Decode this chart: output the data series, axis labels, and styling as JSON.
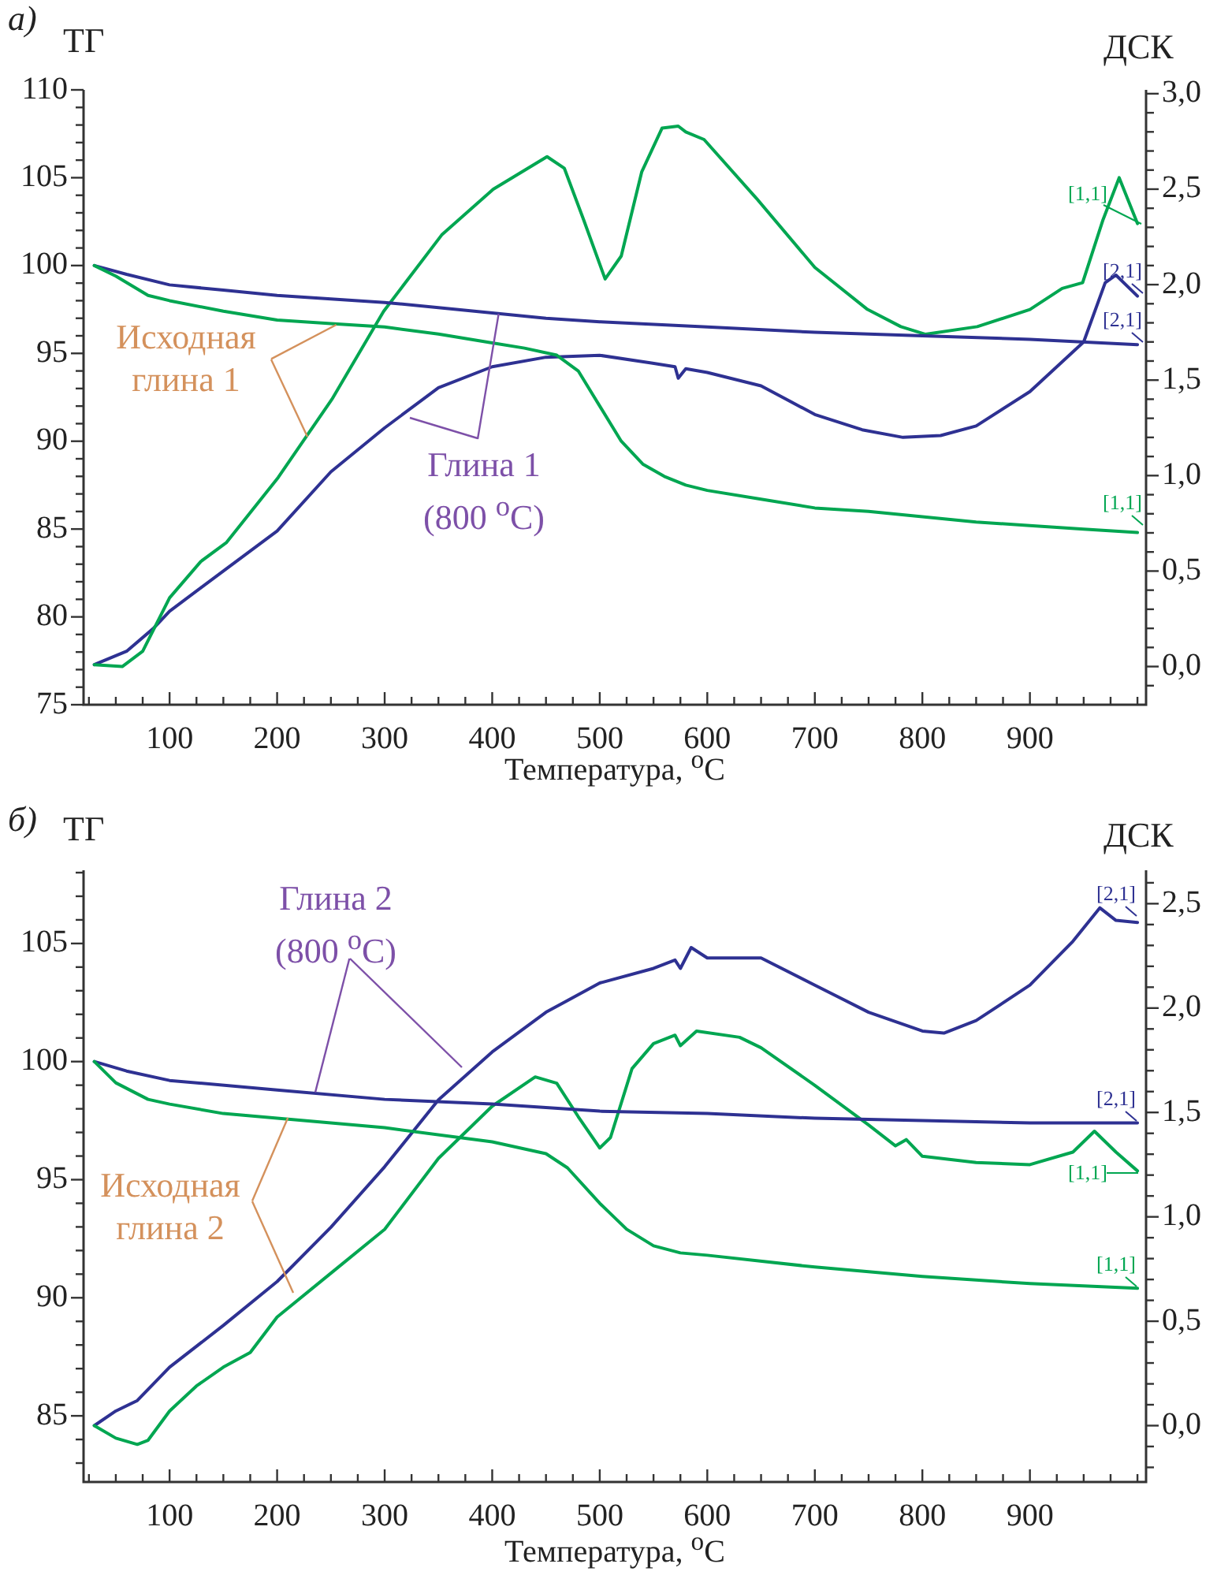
{
  "chart_data": [
    {
      "type": "line",
      "title": "а)",
      "xlabel": "Температура, $^{o}$C",
      "ylabel": "ТГ",
      "y2label": "ДСК",
      "xlim": [
        20,
        1008
      ],
      "ylim": [
        75,
        110
      ],
      "y2lim": [
        -0.2,
        3.02
      ],
      "xticks": [
        {
          "value": 25,
          "label": null
        },
        {
          "value": 50,
          "label": null
        },
        {
          "value": 75,
          "label": null
        },
        100,
        {
          "value": 125,
          "label": null
        },
        {
          "value": 150,
          "label": null
        },
        {
          "value": 175,
          "label": null
        },
        200,
        {
          "value": 225,
          "label": null
        },
        {
          "value": 250,
          "label": null
        },
        {
          "value": 275,
          "label": null
        },
        300,
        {
          "value": 325,
          "label": null
        },
        {
          "value": 350,
          "label": null
        },
        {
          "value": 375,
          "label": null
        },
        400,
        {
          "value": 425,
          "label": null
        },
        {
          "value": 450,
          "label": null
        },
        {
          "value": 475,
          "label": null
        },
        500,
        {
          "value": 525,
          "label": null
        },
        {
          "value": 550,
          "label": null
        },
        {
          "value": 575,
          "label": null
        },
        600,
        {
          "value": 625,
          "label": null
        },
        {
          "value": 650,
          "label": null
        },
        {
          "value": 675,
          "label": null
        },
        700,
        {
          "value": 725,
          "label": null
        },
        {
          "value": 750,
          "label": null
        },
        {
          "value": 775,
          "label": null
        },
        800,
        {
          "value": 825,
          "label": null
        },
        {
          "value": 850,
          "label": null
        },
        {
          "value": 875,
          "label": null
        },
        900,
        {
          "value": 925,
          "label": null
        },
        {
          "value": 950,
          "label": null
        },
        {
          "value": 975,
          "label": null
        },
        {
          "value": 1000,
          "label": null
        }
      ],
      "yticks": [
        75,
        {
          "value": 76,
          "label": null
        },
        {
          "value": 77,
          "label": null
        },
        {
          "value": 78,
          "label": null
        },
        {
          "value": 79,
          "label": null
        },
        80,
        {
          "value": 81,
          "label": null
        },
        {
          "value": 82,
          "label": null
        },
        {
          "value": 83,
          "label": null
        },
        {
          "value": 84,
          "label": null
        },
        85,
        {
          "value": 86,
          "label": null
        },
        {
          "value": 87,
          "label": null
        },
        {
          "value": 88,
          "label": null
        },
        {
          "value": 89,
          "label": null
        },
        90,
        {
          "value": 91,
          "label": null
        },
        {
          "value": 92,
          "label": null
        },
        {
          "value": 93,
          "label": null
        },
        {
          "value": 94,
          "label": null
        },
        95,
        {
          "value": 96,
          "label": null
        },
        {
          "value": 97,
          "label": null
        },
        {
          "value": 98,
          "label": null
        },
        {
          "value": 99,
          "label": null
        },
        100,
        {
          "value": 101,
          "label": null
        },
        {
          "value": 102,
          "label": null
        },
        {
          "value": 103,
          "label": null
        },
        {
          "value": 104,
          "label": null
        },
        105,
        {
          "value": 106,
          "label": null
        },
        {
          "value": 107,
          "label": null
        },
        {
          "value": 108,
          "label": null
        },
        {
          "value": 109,
          "label": null
        },
        110
      ],
      "y2ticks": [
        {
          "value": -0.1,
          "label": null
        },
        {
          "value": 0,
          "label": "0,0"
        },
        {
          "value": 0.1,
          "label": null
        },
        {
          "value": 0.2,
          "label": null
        },
        {
          "value": 0.3,
          "label": null
        },
        {
          "value": 0.4,
          "label": null
        },
        {
          "value": 0.5,
          "label": "0,5"
        },
        {
          "value": 0.6,
          "label": null
        },
        {
          "value": 0.7,
          "label": null
        },
        {
          "value": 0.8,
          "label": null
        },
        {
          "value": 0.9,
          "label": null
        },
        {
          "value": 1,
          "label": "1,0"
        },
        {
          "value": 1.1,
          "label": null
        },
        {
          "value": 1.2,
          "label": null
        },
        {
          "value": 1.3,
          "label": null
        },
        {
          "value": 1.4,
          "label": null
        },
        {
          "value": 1.5,
          "label": "1,5"
        },
        {
          "value": 1.6,
          "label": null
        },
        {
          "value": 1.7,
          "label": null
        },
        {
          "value": 1.8,
          "label": null
        },
        {
          "value": 1.9,
          "label": null
        },
        {
          "value": 2,
          "label": "2,0"
        },
        {
          "value": 2.1,
          "label": null
        },
        {
          "value": 2.2,
          "label": null
        },
        {
          "value": 2.3,
          "label": null
        },
        {
          "value": 2.4,
          "label": null
        },
        {
          "value": 2.5,
          "label": "2,5"
        },
        {
          "value": 2.6,
          "label": null
        },
        {
          "value": 2.7,
          "label": null
        },
        {
          "value": 2.8,
          "label": null
        },
        {
          "value": 2.9,
          "label": null
        },
        {
          "value": 3,
          "label": "3,0"
        }
      ],
      "series": [
        {
          "color": "#00a651",
          "x": [
            30,
            50,
            80,
            100,
            150,
            200,
            250,
            300,
            350,
            400,
            430,
            460,
            480,
            500,
            520,
            540,
            560,
            580,
            600,
            650,
            700,
            750,
            800,
            850,
            900,
            950,
            1000
          ],
          "values": [
            100,
            99.4,
            98.3,
            98.0,
            97.4,
            96.9,
            96.7,
            96.5,
            96.1,
            95.6,
            95.3,
            94.9,
            94.0,
            92.0,
            90.0,
            88.7,
            88.0,
            87.5,
            87.2,
            86.7,
            86.2,
            86.0,
            85.7,
            85.4,
            85.2,
            85.0,
            84.8
          ]
        },
        {
          "color": "#2e3192",
          "x": [
            30,
            60,
            100,
            150,
            200,
            250,
            300,
            350,
            400,
            450,
            500,
            600,
            700,
            800,
            900,
            1000
          ],
          "values": [
            100,
            99.5,
            98.9,
            98.6,
            98.3,
            98.1,
            97.9,
            97.6,
            97.3,
            97.0,
            96.8,
            96.5,
            96.2,
            96.0,
            95.8,
            95.5
          ]
        },
        {
          "color": "#00a651",
          "axis": "y2",
          "x": [
            30,
            56,
            75,
            100,
            129,
            153,
            201,
            251,
            299,
            353,
            401,
            451,
            467,
            485,
            505,
            520,
            539,
            558,
            573,
            580,
            597,
            646,
            700,
            749,
            780,
            803,
            851,
            900,
            930,
            949,
            968,
            983,
            1000
          ],
          "values": [
            0.01,
            0.0,
            0.08,
            0.36,
            0.55,
            0.65,
            0.99,
            1.4,
            1.86,
            2.26,
            2.5,
            2.67,
            2.61,
            2.34,
            2.03,
            2.15,
            2.59,
            2.82,
            2.83,
            2.8,
            2.76,
            2.45,
            2.09,
            1.87,
            1.78,
            1.74,
            1.78,
            1.87,
            1.98,
            2.01,
            2.34,
            2.56,
            2.32
          ]
        },
        {
          "color": "#2e3192",
          "axis": "y2",
          "x": [
            30,
            60,
            85,
            100,
            150,
            200,
            250,
            300,
            350,
            400,
            450,
            500,
            548,
            570,
            573,
            580,
            600,
            650,
            700,
            744,
            782,
            817,
            850,
            900,
            950,
            970,
            980,
            1000
          ],
          "values": [
            0.01,
            0.08,
            0.2,
            0.29,
            0.5,
            0.71,
            1.02,
            1.25,
            1.46,
            1.57,
            1.62,
            1.63,
            1.59,
            1.57,
            1.51,
            1.56,
            1.54,
            1.47,
            1.32,
            1.24,
            1.2,
            1.21,
            1.26,
            1.44,
            1.7,
            2.01,
            2.05,
            1.94
          ]
        }
      ],
      "annotations": [
        {
          "text": "Исходная глина 1",
          "x": 255,
          "y": 96.6
        },
        {
          "text": "Глина 1 (800 $^{o}$C)",
          "x": 406,
          "y": 97.3
        },
        "[1,1]",
        "[2,1]",
        "[2,1]",
        "[1,1]"
      ]
    },
    {
      "type": "line",
      "title": "б)",
      "xlabel": "Температура, $^{o}$C",
      "ylabel": "ТГ",
      "y2label": "ДСК",
      "xlim": [
        20,
        1008
      ],
      "ylim": [
        82.2,
        108.1
      ],
      "y2lim": [
        -0.27,
        2.66
      ],
      "xticks": [
        {
          "value": 25,
          "label": null
        },
        {
          "value": 50,
          "label": null
        },
        {
          "value": 75,
          "label": null
        },
        100,
        {
          "value": 125,
          "label": null
        },
        {
          "value": 150,
          "label": null
        },
        {
          "value": 175,
          "label": null
        },
        200,
        {
          "value": 225,
          "label": null
        },
        {
          "value": 250,
          "label": null
        },
        {
          "value": 275,
          "label": null
        },
        300,
        {
          "value": 325,
          "label": null
        },
        {
          "value": 350,
          "label": null
        },
        {
          "value": 375,
          "label": null
        },
        400,
        {
          "value": 425,
          "label": null
        },
        {
          "value": 450,
          "label": null
        },
        {
          "value": 475,
          "label": null
        },
        500,
        {
          "value": 525,
          "label": null
        },
        {
          "value": 550,
          "label": null
        },
        {
          "value": 575,
          "label": null
        },
        600,
        {
          "value": 625,
          "label": null
        },
        {
          "value": 650,
          "label": null
        },
        {
          "value": 675,
          "label": null
        },
        700,
        {
          "value": 725,
          "label": null
        },
        {
          "value": 750,
          "label": null
        },
        {
          "value": 775,
          "label": null
        },
        800,
        {
          "value": 825,
          "label": null
        },
        {
          "value": 850,
          "label": null
        },
        {
          "value": 875,
          "label": null
        },
        900,
        {
          "value": 925,
          "label": null
        },
        {
          "value": 950,
          "label": null
        },
        {
          "value": 975,
          "label": null
        },
        {
          "value": 1000,
          "label": null
        }
      ],
      "yticks": [
        {
          "value": 83,
          "label": null
        },
        {
          "value": 84,
          "label": null
        },
        85,
        {
          "value": 86,
          "label": null
        },
        {
          "value": 87,
          "label": null
        },
        {
          "value": 88,
          "label": null
        },
        {
          "value": 89,
          "label": null
        },
        90,
        {
          "value": 91,
          "label": null
        },
        {
          "value": 92,
          "label": null
        },
        {
          "value": 93,
          "label": null
        },
        {
          "value": 94,
          "label": null
        },
        95,
        {
          "value": 96,
          "label": null
        },
        {
          "value": 97,
          "label": null
        },
        {
          "value": 98,
          "label": null
        },
        {
          "value": 99,
          "label": null
        },
        100,
        {
          "value": 101,
          "label": null
        },
        {
          "value": 102,
          "label": null
        },
        {
          "value": 103,
          "label": null
        },
        {
          "value": 104,
          "label": null
        },
        105,
        {
          "value": 106,
          "label": null
        },
        {
          "value": 107,
          "label": null
        },
        {
          "value": 108,
          "label": null
        }
      ],
      "y2ticks": [
        {
          "value": -0.2,
          "label": null
        },
        {
          "value": -0.1,
          "label": null
        },
        {
          "value": 0,
          "label": "0,0"
        },
        {
          "value": 0.1,
          "label": null
        },
        {
          "value": 0.2,
          "label": null
        },
        {
          "value": 0.3,
          "label": null
        },
        {
          "value": 0.4,
          "label": null
        },
        {
          "value": 0.5,
          "label": "0,5"
        },
        {
          "value": 0.6,
          "label": null
        },
        {
          "value": 0.7,
          "label": null
        },
        {
          "value": 0.8,
          "label": null
        },
        {
          "value": 0.9,
          "label": null
        },
        {
          "value": 1,
          "label": "1,0"
        },
        {
          "value": 1.1,
          "label": null
        },
        {
          "value": 1.2,
          "label": null
        },
        {
          "value": 1.3,
          "label": null
        },
        {
          "value": 1.4,
          "label": null
        },
        {
          "value": 1.5,
          "label": "1,5"
        },
        {
          "value": 1.6,
          "label": null
        },
        {
          "value": 1.7,
          "label": null
        },
        {
          "value": 1.8,
          "label": null
        },
        {
          "value": 1.9,
          "label": null
        },
        {
          "value": 2,
          "label": "2,0"
        },
        {
          "value": 2.1,
          "label": null
        },
        {
          "value": 2.2,
          "label": null
        },
        {
          "value": 2.3,
          "label": null
        },
        {
          "value": 2.4,
          "label": null
        },
        {
          "value": 2.5,
          "label": "2,5"
        },
        {
          "value": 2.6,
          "label": null
        }
      ],
      "series": [
        {
          "color": "#00a651",
          "x": [
            30,
            50,
            80,
            100,
            150,
            200,
            300,
            400,
            450,
            470,
            500,
            525,
            550,
            575,
            600,
            700,
            800,
            900,
            1000
          ],
          "values": [
            100,
            99.1,
            98.4,
            98.2,
            97.8,
            97.6,
            97.2,
            96.6,
            96.1,
            95.5,
            94.0,
            92.9,
            92.2,
            91.9,
            91.8,
            91.3,
            90.9,
            90.6,
            90.4
          ]
        },
        {
          "color": "#2e3192",
          "x": [
            30,
            60,
            100,
            200,
            300,
            400,
            500,
            600,
            700,
            800,
            900,
            1000
          ],
          "values": [
            100,
            99.6,
            99.2,
            98.8,
            98.4,
            98.2,
            97.9,
            97.8,
            97.6,
            97.5,
            97.4,
            97.4
          ]
        },
        {
          "color": "#00a651",
          "axis": "y2",
          "x": [
            30,
            50,
            70,
            80,
            100,
            125,
            150,
            175,
            200,
            250,
            300,
            350,
            400,
            440,
            460,
            480,
            500,
            510,
            530,
            550,
            570,
            575,
            590,
            630,
            650,
            700,
            750,
            775,
            785,
            800,
            850,
            900,
            940,
            960,
            980,
            1000
          ],
          "values": [
            0.0,
            -0.06,
            -0.09,
            -0.07,
            0.07,
            0.19,
            0.28,
            0.35,
            0.52,
            0.73,
            0.94,
            1.28,
            1.53,
            1.67,
            1.64,
            1.48,
            1.33,
            1.38,
            1.71,
            1.83,
            1.87,
            1.82,
            1.89,
            1.86,
            1.81,
            1.63,
            1.44,
            1.34,
            1.37,
            1.29,
            1.26,
            1.25,
            1.31,
            1.41,
            1.31,
            1.22
          ]
        },
        {
          "color": "#2e3192",
          "axis": "y2",
          "x": [
            30,
            50,
            70,
            100,
            150,
            200,
            250,
            300,
            350,
            400,
            450,
            500,
            550,
            570,
            575,
            585,
            600,
            650,
            700,
            750,
            800,
            820,
            850,
            900,
            940,
            965,
            980,
            1000
          ],
          "values": [
            0.0,
            0.07,
            0.12,
            0.28,
            0.48,
            0.69,
            0.95,
            1.24,
            1.56,
            1.79,
            1.98,
            2.12,
            2.19,
            2.23,
            2.19,
            2.29,
            2.24,
            2.24,
            2.11,
            1.98,
            1.89,
            1.88,
            1.94,
            2.11,
            2.32,
            2.48,
            2.42,
            2.41
          ]
        }
      ],
      "annotations": [
        {
          "text": "Глина 2 (800 $^{o}$C)",
          "x": 236,
          "y": 98.7
        },
        {
          "text": "Исходная глина 2",
          "x": 210,
          "y": 97.6
        },
        "[2,1]",
        "[2,1]",
        "[1,1]",
        "[1,1]"
      ]
    }
  ]
}
